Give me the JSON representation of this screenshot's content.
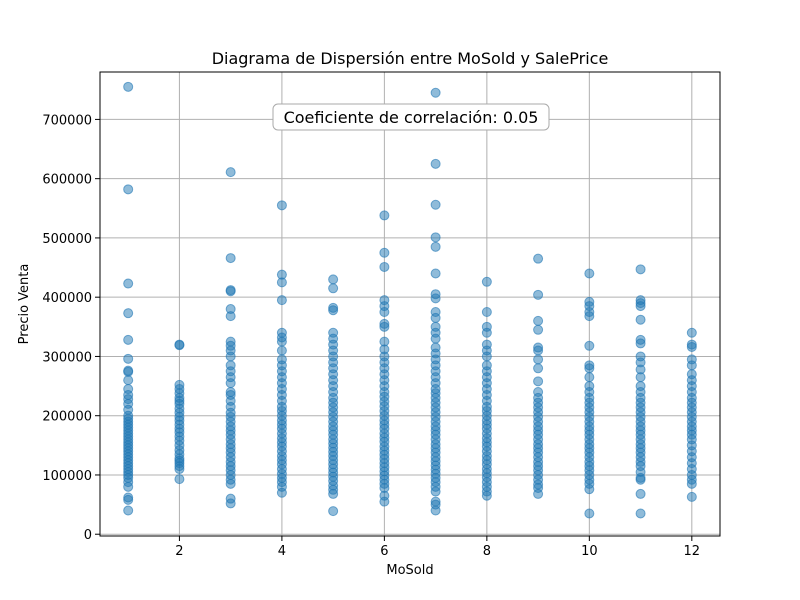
{
  "chart_data": {
    "type": "scatter",
    "title": "Diagrama de Dispersión entre MoSold y SalePrice",
    "xlabel": "MoSold",
    "ylabel": "Precio Venta",
    "annotation": "Coeficiente de correlación: 0.05",
    "xlim": [
      0.45,
      12.55
    ],
    "ylim": [
      -3000,
      780000
    ],
    "x_ticks": [
      2,
      4,
      6,
      8,
      10,
      12
    ],
    "y_ticks": [
      0,
      100000,
      200000,
      300000,
      400000,
      500000,
      600000,
      700000
    ],
    "grid": true,
    "point_color": "#1f77b4",
    "point_alpha": 0.5,
    "points_by_month": [
      {
        "x": 1,
        "y": [
          755000,
          582000,
          423000,
          373000,
          328000,
          296000,
          276000,
          274000,
          260000,
          245000,
          235000,
          228000,
          220000,
          210000,
          200000,
          195000,
          190000,
          185000,
          180000,
          175000,
          170000,
          165000,
          160000,
          155000,
          150000,
          145000,
          140000,
          135000,
          130000,
          125000,
          120000,
          115000,
          110000,
          105000,
          100000,
          95000,
          88000,
          80000,
          62000,
          58000,
          40000
        ]
      },
      {
        "x": 2,
        "y": [
          320000,
          319000,
          252000,
          245000,
          238000,
          230000,
          225000,
          220000,
          212000,
          205000,
          198000,
          192000,
          185000,
          178000,
          172000,
          165000,
          158000,
          150000,
          142000,
          135000,
          128000,
          124000,
          120000,
          115000,
          110000,
          93000
        ]
      },
      {
        "x": 3,
        "y": [
          611000,
          466000,
          412000,
          410000,
          380000,
          368000,
          325000,
          318000,
          310000,
          300000,
          285000,
          275000,
          265000,
          255000,
          240000,
          235000,
          225000,
          215000,
          205000,
          198000,
          190000,
          182000,
          175000,
          168000,
          160000,
          152000,
          145000,
          138000,
          130000,
          122000,
          115000,
          108000,
          100000,
          92000,
          85000,
          60000,
          52000
        ]
      },
      {
        "x": 4,
        "y": [
          555000,
          438000,
          425000,
          395000,
          340000,
          332000,
          325000,
          310000,
          295000,
          285000,
          275000,
          265000,
          255000,
          245000,
          235000,
          225000,
          215000,
          208000,
          200000,
          192000,
          185000,
          178000,
          170000,
          162000,
          155000,
          148000,
          140000,
          132000,
          125000,
          118000,
          110000,
          102000,
          95000,
          88000,
          80000,
          70000
        ]
      },
      {
        "x": 5,
        "y": [
          430000,
          415000,
          382000,
          378000,
          340000,
          330000,
          320000,
          310000,
          300000,
          290000,
          280000,
          270000,
          260000,
          250000,
          240000,
          230000,
          222000,
          214000,
          206000,
          198000,
          190000,
          182000,
          175000,
          168000,
          160000,
          153000,
          146000,
          139000,
          132000,
          125000,
          118000,
          111000,
          104000,
          97000,
          90000,
          82000,
          75000,
          68000,
          39000
        ]
      },
      {
        "x": 6,
        "y": [
          538000,
          475000,
          451000,
          395000,
          385000,
          375000,
          355000,
          350000,
          325000,
          312000,
          300000,
          290000,
          280000,
          270000,
          260000,
          250000,
          240000,
          232000,
          224000,
          216000,
          208000,
          200000,
          192000,
          185000,
          178000,
          170000,
          163000,
          156000,
          148000,
          141000,
          134000,
          127000,
          120000,
          113000,
          106000,
          99000,
          92000,
          85000,
          78000,
          65000,
          55000
        ]
      },
      {
        "x": 7,
        "y": [
          745000,
          625000,
          556000,
          501000,
          485000,
          440000,
          405000,
          398000,
          375000,
          365000,
          350000,
          340000,
          330000,
          315000,
          305000,
          295000,
          285000,
          275000,
          265000,
          255000,
          245000,
          238000,
          230000,
          222000,
          214000,
          206000,
          198000,
          190000,
          182000,
          175000,
          168000,
          160000,
          152000,
          145000,
          138000,
          130000,
          123000,
          116000,
          109000,
          102000,
          95000,
          88000,
          80000,
          72000,
          55000,
          50000,
          40000
        ]
      },
      {
        "x": 8,
        "y": [
          426000,
          375000,
          350000,
          340000,
          320000,
          310000,
          300000,
          285000,
          275000,
          265000,
          255000,
          245000,
          235000,
          225000,
          215000,
          208000,
          200000,
          192000,
          185000,
          178000,
          170000,
          162000,
          155000,
          148000,
          140000,
          132000,
          125000,
          118000,
          110000,
          103000,
          96000,
          88000,
          80000,
          72000,
          65000
        ]
      },
      {
        "x": 9,
        "y": [
          465000,
          404000,
          360000,
          345000,
          315000,
          310000,
          295000,
          280000,
          258000,
          240000,
          230000,
          222000,
          214000,
          206000,
          198000,
          190000,
          182000,
          175000,
          168000,
          160000,
          152000,
          145000,
          138000,
          130000,
          122000,
          115000,
          108000,
          100000,
          92000,
          84000,
          78000,
          68000
        ]
      },
      {
        "x": 10,
        "y": [
          440000,
          392000,
          385000,
          375000,
          368000,
          318000,
          285000,
          280000,
          265000,
          250000,
          240000,
          230000,
          222000,
          214000,
          206000,
          198000,
          190000,
          182000,
          175000,
          168000,
          160000,
          152000,
          145000,
          138000,
          130000,
          122000,
          115000,
          108000,
          100000,
          92000,
          85000,
          76000,
          35000
        ]
      },
      {
        "x": 11,
        "y": [
          447000,
          395000,
          390000,
          385000,
          362000,
          328000,
          322000,
          300000,
          290000,
          278000,
          265000,
          250000,
          240000,
          230000,
          222000,
          214000,
          206000,
          198000,
          190000,
          182000,
          175000,
          168000,
          160000,
          152000,
          145000,
          138000,
          130000,
          122000,
          115000,
          105000,
          95000,
          92000,
          68000,
          35000
        ]
      },
      {
        "x": 12,
        "y": [
          340000,
          320000,
          316000,
          295000,
          285000,
          270000,
          260000,
          250000,
          240000,
          230000,
          222000,
          214000,
          206000,
          198000,
          190000,
          182000,
          175000,
          168000,
          160000,
          150000,
          140000,
          130000,
          120000,
          110000,
          100000,
          92000,
          85000,
          63000
        ]
      }
    ]
  }
}
